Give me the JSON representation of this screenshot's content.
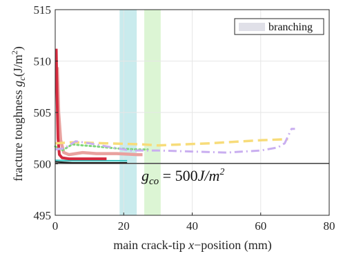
{
  "chart_data": {
    "type": "line",
    "xlabel_parts": {
      "before": "main crack-tip ",
      "var": "x",
      "after": "−position (mm)"
    },
    "ylabel_parts": {
      "before": "fracture toughness ",
      "var": "g",
      "sub": "c",
      "after": "(J/m",
      "sup": "2",
      "close": ")"
    },
    "xlim": [
      0,
      80
    ],
    "ylim": [
      495,
      515
    ],
    "xticks": [
      0,
      20,
      40,
      60,
      80
    ],
    "yticks": [
      495,
      500,
      505,
      510,
      515
    ],
    "grid": true,
    "legend": {
      "position": "top-right",
      "entries": [
        {
          "label": "branching",
          "color": "#e0e0e8"
        }
      ]
    },
    "branching_bands": [
      {
        "x0": 18.8,
        "x1": 23.8,
        "color": "#bfe8ea"
      },
      {
        "x0": 26.0,
        "x1": 30.8,
        "color": "#d6f3cc"
      }
    ],
    "annotation": {
      "var": "g",
      "sub": "co",
      "mid": " = 500",
      "unit": "J/m",
      "sup": "2"
    },
    "series": [
      {
        "color": "#333333",
        "style": "solid",
        "width": 1.4,
        "points": [
          [
            0,
            500.05
          ],
          [
            80,
            500.05
          ]
        ]
      },
      {
        "color": "#1a1a1a",
        "style": "solid",
        "width": 2,
        "points": [
          [
            0,
            500.2
          ],
          [
            5,
            500.1
          ],
          [
            10,
            500.1
          ],
          [
            15,
            500.1
          ],
          [
            21,
            500.1
          ]
        ]
      },
      {
        "color": "#3cc3c0",
        "style": "solid",
        "width": 2.2,
        "points": [
          [
            0,
            500.35
          ],
          [
            5,
            500.3
          ],
          [
            10,
            500.3
          ],
          [
            15,
            500.3
          ],
          [
            21,
            500.3
          ]
        ]
      },
      {
        "color": "#e9a19e",
        "style": "solid",
        "width": 4.5,
        "points": [
          [
            0.6,
            509.4
          ],
          [
            1.0,
            505.0
          ],
          [
            1.6,
            502.3
          ],
          [
            2.5,
            501.1
          ],
          [
            4,
            500.9
          ],
          [
            8,
            501.1
          ],
          [
            12,
            501.0
          ],
          [
            18,
            501.0
          ],
          [
            24,
            500.9
          ],
          [
            25.5,
            500.9
          ]
        ]
      },
      {
        "color": "#d42a3e",
        "style": "solid",
        "width": 4,
        "points": [
          [
            0.3,
            511.2
          ],
          [
            0.5,
            507.0
          ],
          [
            0.8,
            502.5
          ],
          [
            1.2,
            500.9
          ],
          [
            2,
            500.6
          ],
          [
            4,
            500.5
          ],
          [
            7,
            500.5
          ],
          [
            10,
            500.5
          ],
          [
            15,
            500.5
          ]
        ]
      },
      {
        "color": "#7ed67a",
        "style": "dotted",
        "width": 3,
        "points": [
          [
            0,
            501.7
          ],
          [
            2,
            501.3
          ],
          [
            5,
            501.9
          ],
          [
            8,
            501.8
          ],
          [
            12,
            501.7
          ],
          [
            18,
            501.5
          ],
          [
            24,
            501.4
          ],
          [
            27,
            501.4
          ]
        ]
      },
      {
        "color": "#f7dc7a",
        "style": "dashed",
        "width": 3.5,
        "points": [
          [
            0,
            502.0
          ],
          [
            5,
            502.1
          ],
          [
            15,
            502.0
          ],
          [
            25,
            501.9
          ],
          [
            30,
            501.8
          ],
          [
            45,
            502.0
          ],
          [
            60,
            502.3
          ],
          [
            68,
            502.4
          ]
        ]
      },
      {
        "color": "#c9aef0",
        "style": "dashdot",
        "width": 3,
        "points": [
          [
            0,
            501.4
          ],
          [
            2.5,
            501.5
          ],
          [
            6,
            502.2
          ],
          [
            10,
            502.0
          ],
          [
            15,
            501.7
          ],
          [
            22,
            501.3
          ],
          [
            30,
            501.3
          ],
          [
            40,
            501.2
          ],
          [
            50,
            501.1
          ],
          [
            60,
            501.3
          ],
          [
            65,
            501.6
          ],
          [
            67,
            502.0
          ],
          [
            69,
            503.4
          ],
          [
            70,
            503.4
          ]
        ]
      }
    ]
  }
}
